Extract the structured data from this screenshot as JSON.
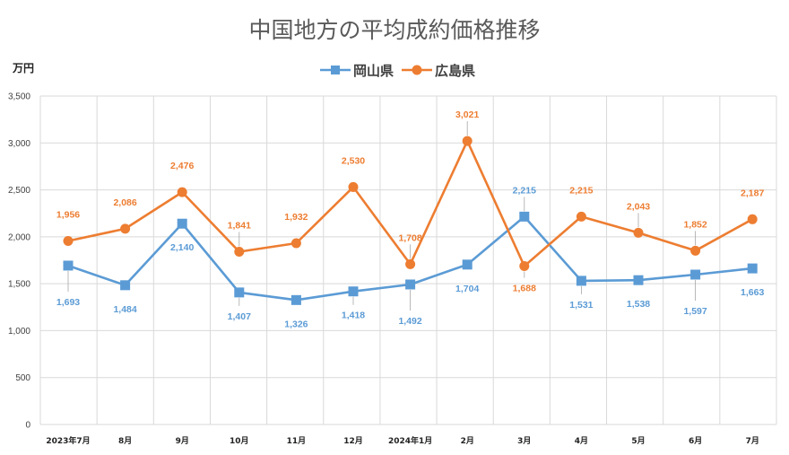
{
  "chart_data": {
    "type": "line",
    "title": "中国地方の平均成約価格推移",
    "ylabel": "万円",
    "xlabel": "",
    "ylim": [
      0,
      3500
    ],
    "yticks": [
      "0",
      "500",
      "1,000",
      "1,500",
      "2,000",
      "2,500",
      "3,000",
      "3,500"
    ],
    "grid": true,
    "legend_position": "top",
    "categories": [
      "2023年7月",
      "8月",
      "9月",
      "10月",
      "11月",
      "12月",
      "2024年1月",
      "2月",
      "3月",
      "4月",
      "5月",
      "6月",
      "7月"
    ],
    "series": [
      {
        "name": "岡山県",
        "color": "#5b9bd5",
        "marker": "square",
        "values": [
          1693,
          1484,
          2140,
          1407,
          1326,
          1418,
          1492,
          1704,
          2215,
          1531,
          1538,
          1597,
          1663
        ],
        "labels": [
          "1,693",
          "1,484",
          "2,140",
          "1,407",
          "1,326",
          "1,418",
          "1,492",
          "1,704",
          "2,215",
          "1,531",
          "1,538",
          "1,597",
          "1,663"
        ]
      },
      {
        "name": "広島県",
        "color": "#ed7d31",
        "marker": "circle",
        "values": [
          1956,
          2086,
          2476,
          1841,
          1932,
          2530,
          1708,
          3021,
          1688,
          2215,
          2043,
          1852,
          2187
        ],
        "labels": [
          "1,956",
          "2,086",
          "2,476",
          "1,841",
          "1,932",
          "2,530",
          "1,708",
          "3,021",
          "1,688",
          "2,215",
          "2,043",
          "1,852",
          "2,187"
        ]
      }
    ]
  },
  "colors": {
    "background": "#ffffff",
    "gridline": "#d9d9d9",
    "title": "#595959"
  }
}
